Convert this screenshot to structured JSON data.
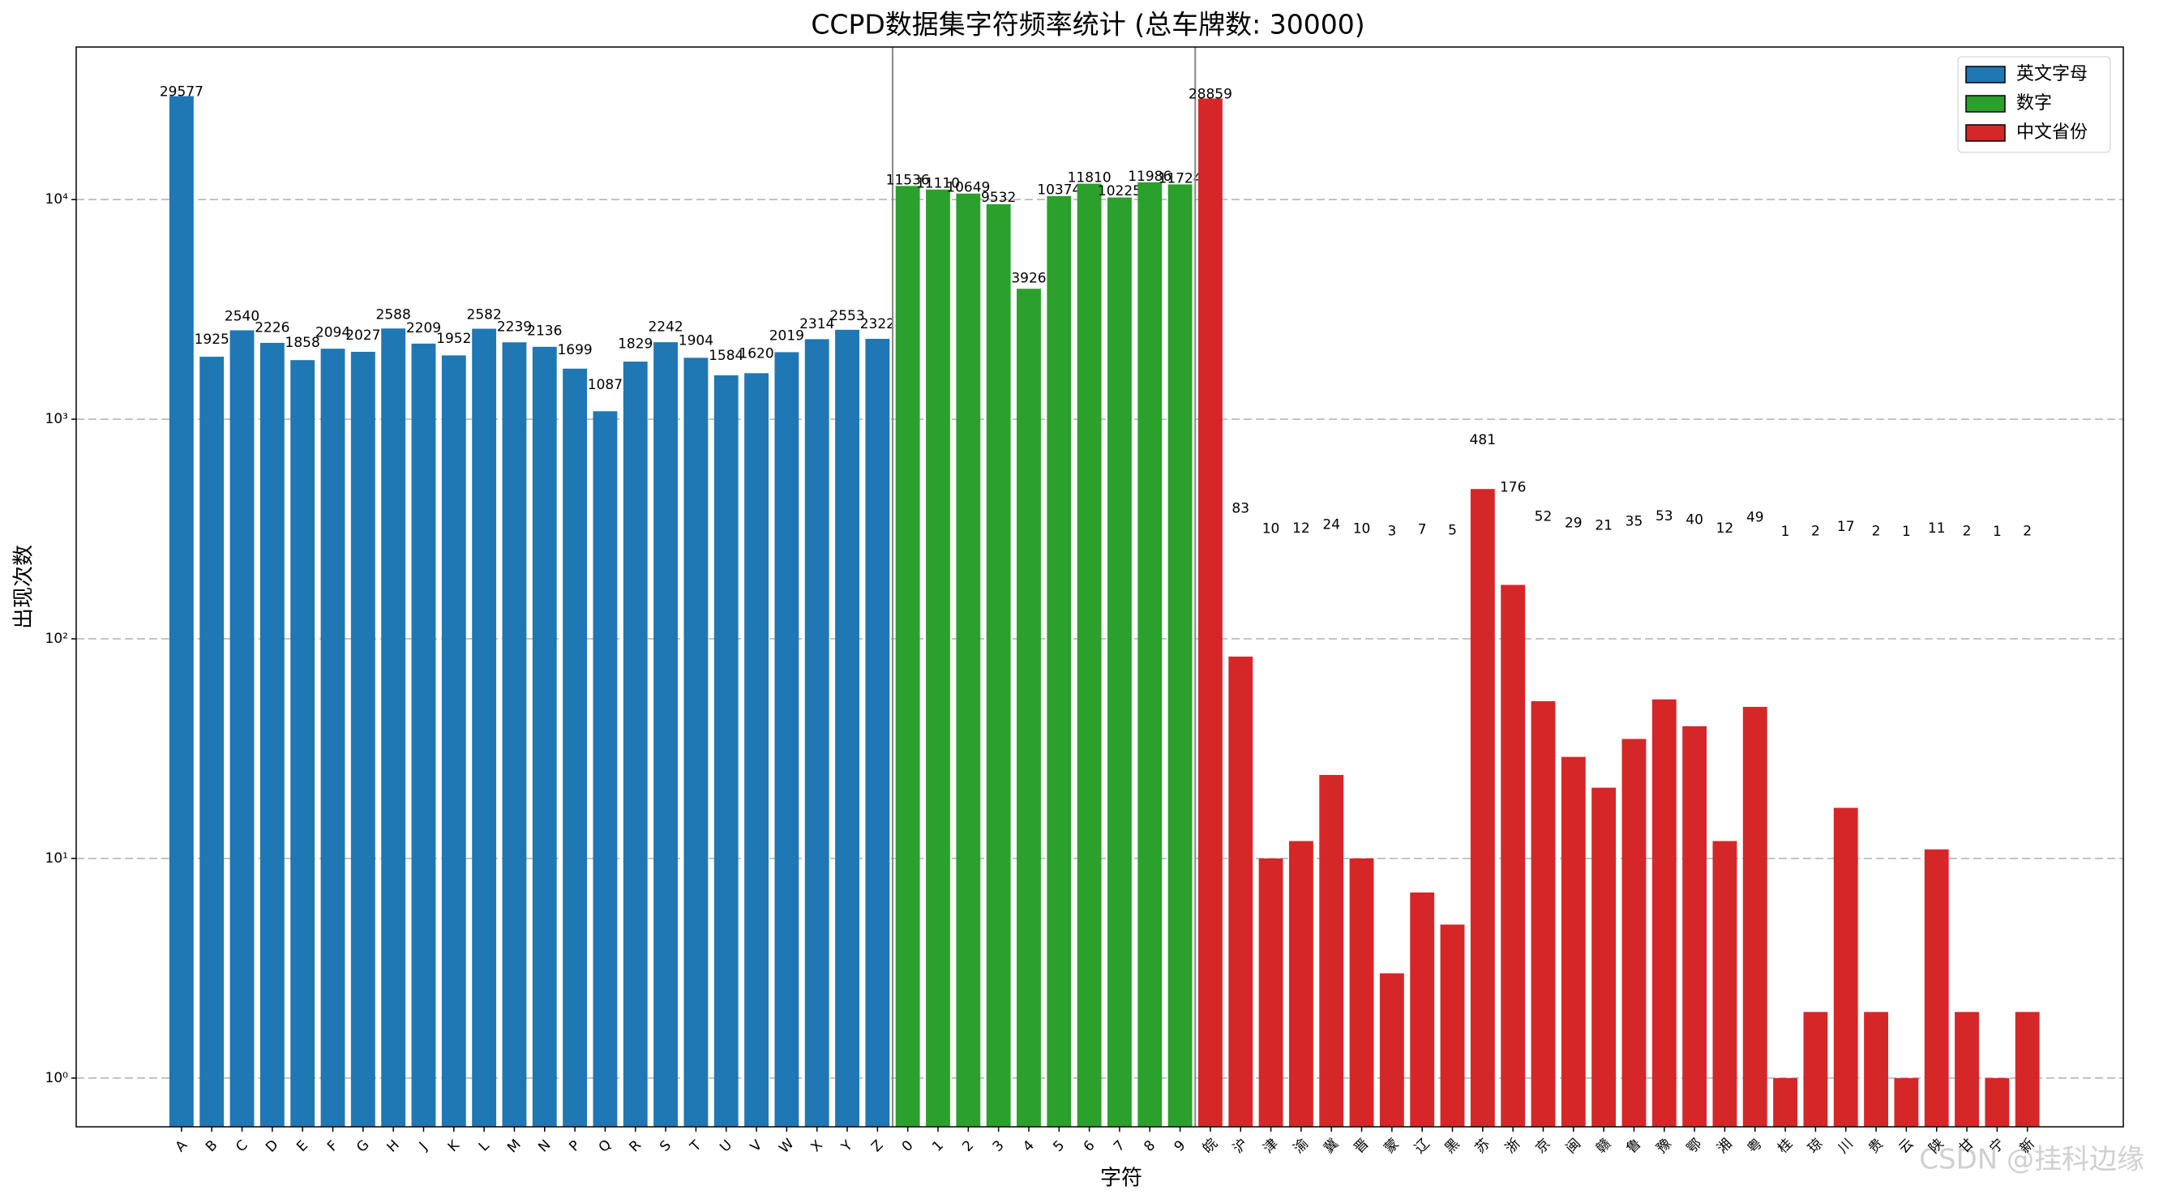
{
  "chart_data": {
    "type": "bar",
    "title": "CCPD数据集字符频率统计 (总车牌数: 30000)",
    "x_label": "字符",
    "y_label": "出现次数",
    "log_scale": true,
    "grid": true,
    "legend": "upper right",
    "ylim": [
      0.6,
      49500
    ],
    "yticks": [
      {
        "value": 1,
        "label": "10⁰"
      },
      {
        "value": 10,
        "label": "10¹"
      },
      {
        "value": 100,
        "label": "10²"
      },
      {
        "value": 1000,
        "label": "10³"
      },
      {
        "value": 10000,
        "label": "10⁴"
      }
    ],
    "series": [
      {
        "name": "英文字母",
        "color": "#1f77b4",
        "categories": [
          "A",
          "B",
          "C",
          "D",
          "E",
          "F",
          "G",
          "H",
          "J",
          "K",
          "L",
          "M",
          "N",
          "P",
          "Q",
          "R",
          "S",
          "T",
          "U",
          "V",
          "W",
          "X",
          "Y",
          "Z"
        ],
        "values": [
          29577,
          1925,
          2540,
          2226,
          1858,
          2094,
          2027,
          2588,
          2209,
          1952,
          2582,
          2239,
          2136,
          1699,
          1087,
          1829,
          2242,
          1904,
          1584,
          1620,
          2019,
          2314,
          2553,
          2322
        ]
      },
      {
        "name": "数字",
        "color": "#2ca02c",
        "categories": [
          "0",
          "1",
          "2",
          "3",
          "4",
          "5",
          "6",
          "7",
          "8",
          "9"
        ],
        "values": [
          11536,
          11110,
          10649,
          9532,
          3926,
          10374,
          11810,
          10225,
          11986,
          11724
        ]
      },
      {
        "name": "中文省份",
        "color": "#d62728",
        "categories": [
          "皖",
          "沪",
          "津",
          "渝",
          "冀",
          "晋",
          "蒙",
          "辽",
          "黑",
          "苏",
          "浙",
          "京",
          "闽",
          "赣",
          "鲁",
          "豫",
          "鄂",
          "湘",
          "粤",
          "桂",
          "琼",
          "川",
          "贵",
          "云",
          "陕",
          "甘",
          "宁",
          "新"
        ],
        "values": [
          28859,
          83,
          10,
          12,
          24,
          10,
          3,
          7,
          5,
          481,
          176,
          52,
          29,
          21,
          35,
          53,
          40,
          12,
          49,
          1,
          2,
          17,
          2,
          1,
          11,
          2,
          1,
          2
        ]
      }
    ],
    "watermark": "CSDN @挂科边缘"
  }
}
